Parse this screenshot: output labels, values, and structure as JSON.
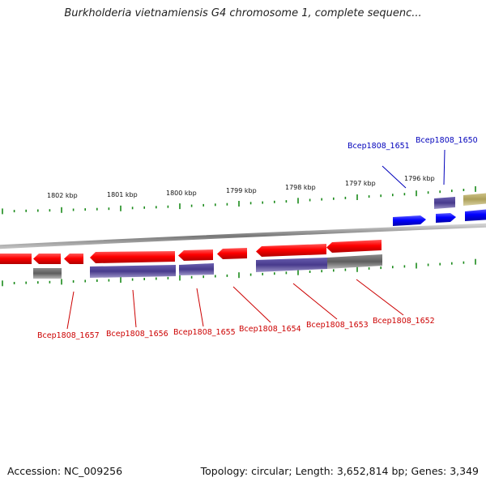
{
  "title": "Burkholderia vietnamiensis G4 chromosome 1, complete sequenc...",
  "footer": {
    "accession": "Accession: NC_009256",
    "stats": "Topology: circular; Length: 3,652,814 bp; Genes: 3,349"
  },
  "colors": {
    "minus_strand_gene": "#ff0000",
    "plus_strand_gene": "#0000ff",
    "cds_purple": "#4a3d8f",
    "cds_gray": "#666666",
    "cds_olive": "#b4a860",
    "tick_green": "#1a8a1a",
    "label_red": "#cc0000",
    "label_blue": "#0000bb"
  },
  "scale_labels": [
    "1802 kbp",
    "1801 kbp",
    "1800 kbp",
    "1799 kbp",
    "1798 kbp",
    "1797 kbp",
    "1796 kbp"
  ],
  "gene_labels": {
    "top": [
      "Bcep1808_1651",
      "Bcep1808_1650"
    ],
    "bottom": [
      "Bcep1808_1657",
      "Bcep1808_1656",
      "Bcep1808_1655",
      "Bcep1808_1654",
      "Bcep1808_1653",
      "Bcep1808_1652"
    ]
  }
}
